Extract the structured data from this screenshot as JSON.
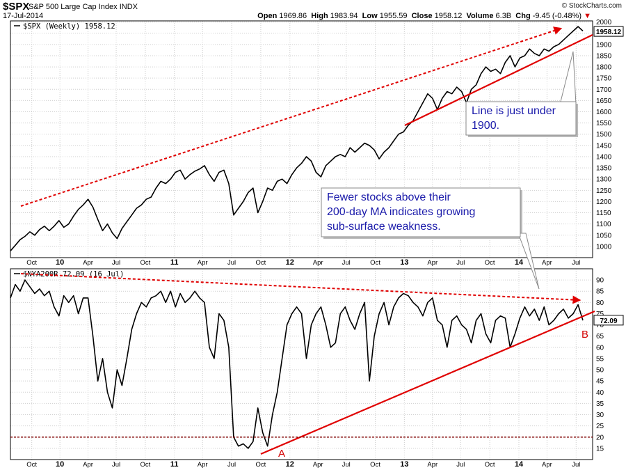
{
  "header": {
    "symbol": "$SPX",
    "description": "S&P 500 Large Cap Index",
    "exchange": "INDX",
    "date": "17-Jul-2014",
    "open_label": "Open",
    "open": "1969.86",
    "high_label": "High",
    "high": "1983.94",
    "low_label": "Low",
    "low": "1955.59",
    "close_label": "Close",
    "close": "1958.12",
    "volume_label": "Volume",
    "volume": "6.3B",
    "chg_label": "Chg",
    "chg": "-9.45 (-0.48%)",
    "brand": "© StockCharts.com",
    "colors": {
      "down": "#d40000",
      "annotation_text": "#1a1aaa",
      "trendline": "#e00000",
      "baseline": "#800000"
    }
  },
  "chart_data": [
    {
      "type": "line",
      "legend": "$SPX (Weekly) 1958.12",
      "last_value_label": "1958.12",
      "y_ticks": [
        1000,
        1050,
        1100,
        1150,
        1200,
        1250,
        1300,
        1350,
        1400,
        1450,
        1500,
        1550,
        1600,
        1650,
        1700,
        1750,
        1800,
        1850,
        1900,
        1950,
        2000
      ],
      "ylim": [
        950,
        2005
      ],
      "x_ticks": [
        "Oct",
        "10",
        "Apr",
        "Jul",
        "Oct",
        "11",
        "Apr",
        "Jul",
        "Oct",
        "12",
        "Apr",
        "Jul",
        "Oct",
        "13",
        "Apr",
        "Jul",
        "Oct",
        "14",
        "Apr",
        "Jul"
      ],
      "x_tick_pos": [
        2.2,
        5.1,
        8.0,
        10.9,
        13.9,
        16.9,
        19.8,
        22.8,
        25.8,
        28.8,
        31.7,
        34.6,
        37.6,
        40.6,
        43.5,
        46.4,
        49.4,
        52.4,
        55.3,
        58.3
      ],
      "xlim": [
        0,
        60
      ],
      "series": [
        {
          "x": [
            0,
            0.5,
            1,
            1.5,
            2,
            2.5,
            3,
            3.5,
            4,
            4.5,
            5,
            5.5,
            6,
            6.5,
            7,
            7.5,
            8,
            8.5,
            9,
            9.5,
            10,
            10.5,
            11,
            11.5,
            12,
            12.5,
            13,
            13.5,
            14,
            14.5,
            15,
            15.5,
            16,
            16.5,
            17,
            17.5,
            18,
            18.5,
            19,
            19.5,
            20,
            20.5,
            21,
            21.5,
            22,
            22.5,
            23,
            23.5,
            24,
            24.5,
            25,
            25.5,
            26,
            26.5,
            27,
            27.5,
            28,
            28.5,
            29,
            29.5,
            30,
            30.5,
            31,
            31.5,
            32,
            32.5,
            33,
            33.5,
            34,
            34.5,
            35,
            35.5,
            36,
            36.5,
            37,
            37.5,
            38,
            38.5,
            39,
            39.5,
            40,
            40.5,
            41,
            41.5,
            42,
            42.5,
            43,
            43.5,
            44,
            44.5,
            45,
            45.5,
            46,
            46.5,
            47,
            47.5,
            48,
            48.5,
            49,
            49.5,
            50,
            50.5,
            51,
            51.5,
            52,
            52.5,
            53,
            53.5,
            54,
            54.5,
            55,
            55.5,
            56,
            56.5,
            57,
            57.5,
            58,
            58.5,
            59
          ],
          "y": [
            980,
            1005,
            1030,
            1045,
            1065,
            1050,
            1075,
            1090,
            1070,
            1090,
            1115,
            1085,
            1100,
            1135,
            1165,
            1185,
            1210,
            1175,
            1120,
            1070,
            1100,
            1060,
            1035,
            1080,
            1110,
            1140,
            1170,
            1185,
            1210,
            1220,
            1260,
            1290,
            1280,
            1300,
            1330,
            1340,
            1300,
            1320,
            1335,
            1345,
            1360,
            1320,
            1290,
            1330,
            1340,
            1280,
            1140,
            1170,
            1200,
            1240,
            1260,
            1150,
            1200,
            1260,
            1250,
            1290,
            1300,
            1280,
            1320,
            1350,
            1370,
            1400,
            1380,
            1330,
            1310,
            1360,
            1380,
            1400,
            1410,
            1400,
            1440,
            1420,
            1440,
            1460,
            1450,
            1430,
            1390,
            1420,
            1440,
            1470,
            1500,
            1510,
            1540,
            1560,
            1600,
            1640,
            1680,
            1660,
            1610,
            1660,
            1690,
            1680,
            1710,
            1690,
            1640,
            1700,
            1720,
            1770,
            1800,
            1780,
            1790,
            1770,
            1820,
            1850,
            1800,
            1840,
            1850,
            1880,
            1860,
            1850,
            1880,
            1870,
            1890,
            1900,
            1920,
            1940,
            1960,
            1980,
            1960
          ]
        }
      ]
    },
    {
      "type": "line",
      "legend": "$NYA200R 72.09 (16 Jul)",
      "last_value_label": "72.09",
      "y_ticks": [
        15,
        20,
        25,
        30,
        35,
        40,
        45,
        50,
        55,
        60,
        65,
        70,
        75,
        80,
        85,
        90
      ],
      "ylim": [
        10,
        95
      ],
      "x_ticks": [
        "Oct",
        "10",
        "Apr",
        "Jul",
        "Oct",
        "11",
        "Apr",
        "Jul",
        "Oct",
        "12",
        "Apr",
        "Jul",
        "Oct",
        "13",
        "Apr",
        "Jul",
        "Oct",
        "14",
        "Apr",
        "Jul"
      ],
      "x_tick_pos": [
        2.2,
        5.1,
        8.0,
        10.9,
        13.9,
        16.9,
        19.8,
        22.8,
        25.8,
        28.8,
        31.7,
        34.6,
        37.6,
        40.6,
        43.5,
        46.4,
        49.4,
        52.4,
        55.3,
        58.3
      ],
      "xlim": [
        0,
        60
      ],
      "series": [
        {
          "x": [
            0,
            0.5,
            1,
            1.5,
            2,
            2.5,
            3,
            3.5,
            4,
            4.5,
            5,
            5.5,
            6,
            6.5,
            7,
            7.5,
            8,
            8.5,
            9,
            9.5,
            10,
            10.5,
            11,
            11.5,
            12,
            12.5,
            13,
            13.5,
            14,
            14.5,
            15,
            15.5,
            16,
            16.5,
            17,
            17.5,
            18,
            18.5,
            19,
            19.5,
            20,
            20.5,
            21,
            21.5,
            22,
            22.5,
            23,
            23.5,
            24,
            24.5,
            25,
            25.5,
            26,
            26.5,
            27,
            27.5,
            28,
            28.5,
            29,
            29.5,
            30,
            30.5,
            31,
            31.5,
            32,
            32.5,
            33,
            33.5,
            34,
            34.5,
            35,
            35.5,
            36,
            36.5,
            37,
            37.5,
            38,
            38.5,
            39,
            39.5,
            40,
            40.5,
            41,
            41.5,
            42,
            42.5,
            43,
            43.5,
            44,
            44.5,
            45,
            45.5,
            46,
            46.5,
            47,
            47.5,
            48,
            48.5,
            49,
            49.5,
            50,
            50.5,
            51,
            51.5,
            52,
            52.5,
            53,
            53.5,
            54,
            54.5,
            55,
            55.5,
            56,
            56.5,
            57,
            57.5,
            58,
            58.5,
            59
          ],
          "y": [
            82,
            88,
            85,
            90,
            87,
            84,
            86,
            83,
            85,
            78,
            74,
            83,
            80,
            83,
            75,
            82,
            82,
            65,
            45,
            55,
            40,
            33,
            50,
            43,
            55,
            68,
            75,
            80,
            78,
            82,
            83,
            85,
            80,
            85,
            78,
            84,
            80,
            82,
            85,
            82,
            80,
            60,
            55,
            75,
            72,
            60,
            20,
            16,
            17,
            15,
            18,
            33,
            22,
            16,
            30,
            40,
            55,
            70,
            75,
            78,
            75,
            55,
            70,
            75,
            78,
            70,
            60,
            62,
            75,
            78,
            72,
            68,
            75,
            80,
            45,
            65,
            75,
            80,
            70,
            78,
            82,
            84,
            83,
            80,
            78,
            74,
            80,
            82,
            72,
            70,
            60,
            72,
            74,
            70,
            68,
            62,
            72,
            75,
            66,
            62,
            72,
            74,
            73,
            60,
            66,
            73,
            78,
            74,
            77,
            72,
            78,
            70,
            72,
            75,
            77,
            73,
            75,
            79,
            72
          ]
        }
      ]
    }
  ],
  "annotations": {
    "top_callout": "Line is just under 1900.",
    "bottom_callout": "Fewer stocks above their 200-day MA indicates growing sub-surface weakness.",
    "label_a": "A",
    "label_b": "B"
  }
}
